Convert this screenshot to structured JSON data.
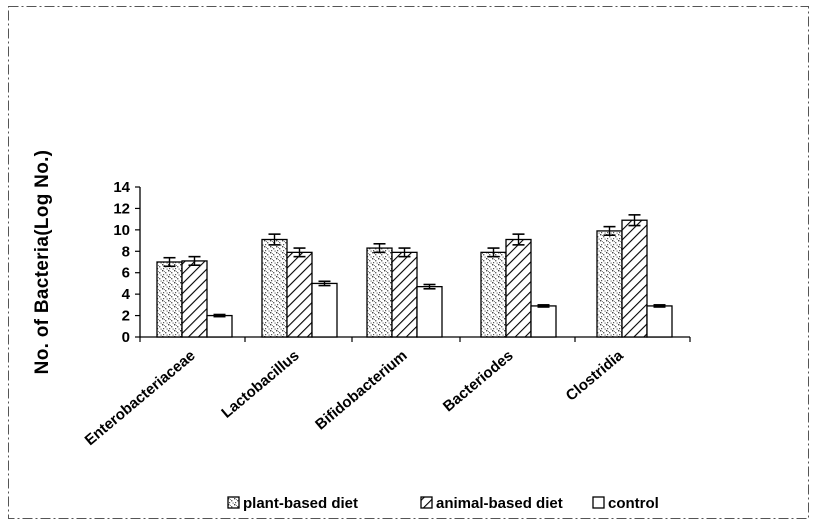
{
  "chart_data": {
    "type": "bar",
    "title": "",
    "xlabel": "",
    "ylabel": "No. of Bacteria(Log No.)",
    "ylim": [
      0,
      14
    ],
    "yticks": [
      0,
      2,
      4,
      6,
      8,
      10,
      12,
      14
    ],
    "grid": false,
    "legend_position": "bottom",
    "categories": [
      "Enterobacteriaceae",
      "Lactobacillus",
      "Bifidobacterium",
      "Bacteriodes",
      "Clostridia"
    ],
    "series": [
      {
        "name": "plant-based diet",
        "pattern": "stipple",
        "values": [
          7.0,
          9.1,
          8.3,
          7.9,
          9.9
        ],
        "errors": [
          0.4,
          0.5,
          0.4,
          0.4,
          0.4
        ]
      },
      {
        "name": "animal-based diet",
        "pattern": "diagonal-hatch",
        "values": [
          7.1,
          7.9,
          7.9,
          9.1,
          10.9
        ],
        "errors": [
          0.4,
          0.4,
          0.4,
          0.5,
          0.5
        ]
      },
      {
        "name": "control",
        "pattern": "empty",
        "values": [
          2.0,
          5.0,
          4.7,
          2.9,
          2.9
        ],
        "errors": [
          0.1,
          0.2,
          0.2,
          0.1,
          0.1
        ]
      }
    ],
    "colors": {
      "fill": "#ffffff",
      "stroke": "#000000",
      "stipple": "#555555"
    }
  }
}
